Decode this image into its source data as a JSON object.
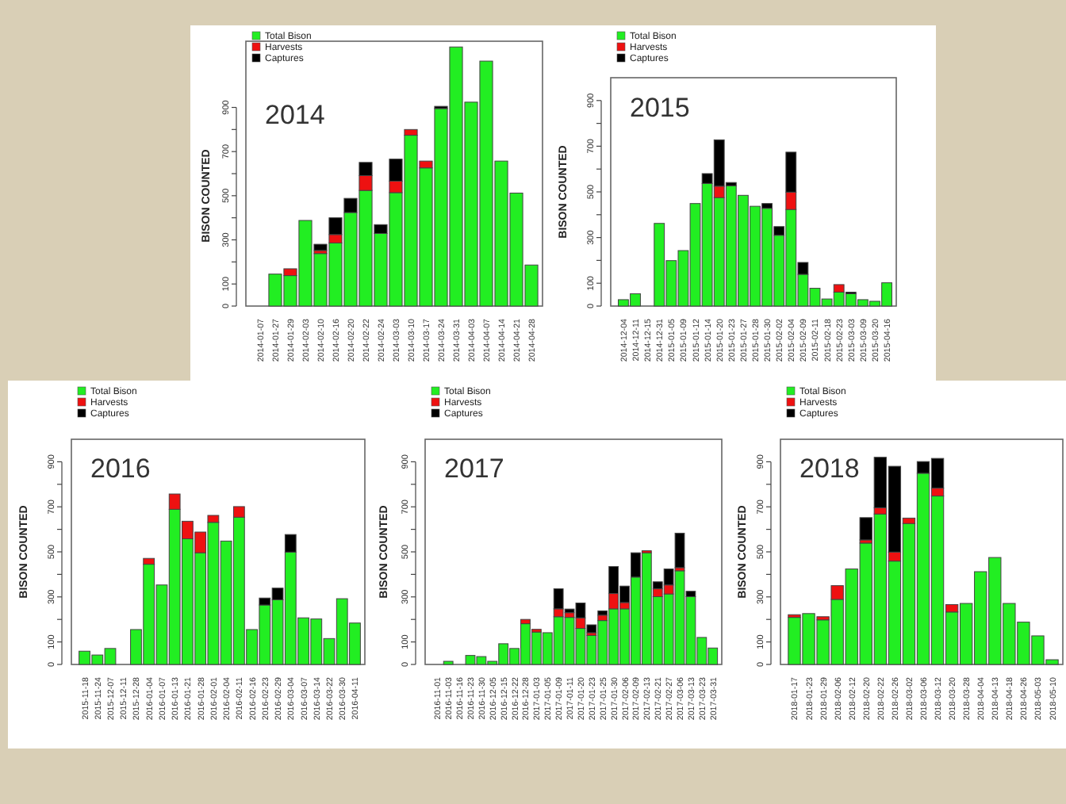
{
  "chart_data": [
    {
      "type": "bar",
      "stacked": true,
      "title": "2014",
      "ylabel": "BISON COUNTED",
      "legend": "top left",
      "categories": [
        "2014-01-07",
        "2014-01-27",
        "2014-01-29",
        "2014-02-03",
        "2014-02-10",
        "2014-02-16",
        "2014-02-20",
        "2014-02-22",
        "2014-02-24",
        "2014-03-03",
        "2014-03-10",
        "2014-03-17",
        "2014-03-24",
        "2014-03-31",
        "2014-04-03",
        "2014-04-07",
        "2014-04-14",
        "2014-04-21",
        "2014-04-28"
      ],
      "series": [
        {
          "name": "Total Bison",
          "color": "#22ee22",
          "values": [
            0,
            145,
            138,
            388,
            238,
            286,
            424,
            524,
            329,
            514,
            774,
            626,
            895,
            1174,
            924,
            1110,
            657,
            512,
            186
          ]
        },
        {
          "name": "Harvests",
          "color": "#ee1111",
          "values": [
            null,
            null,
            31,
            null,
            14,
            38,
            null,
            67,
            null,
            52,
            26,
            31,
            null,
            null,
            null,
            null,
            null,
            null,
            null
          ]
        },
        {
          "name": "Captures",
          "color": "#000000",
          "values": [
            null,
            null,
            null,
            null,
            28,
            76,
            64,
            60,
            40,
            100,
            null,
            null,
            10,
            null,
            null,
            null,
            null,
            null,
            null
          ]
        }
      ],
      "ylim": [
        0,
        1200
      ],
      "yticks": [
        0,
        100,
        {
          "value": 200,
          "label": null
        },
        300,
        {
          "value": 400,
          "label": null
        },
        500,
        {
          "value": 600,
          "label": null
        },
        700,
        {
          "value": 800,
          "label": null
        },
        900
      ]
    },
    {
      "type": "bar",
      "stacked": true,
      "title": "2015",
      "ylabel": "BISON COUNTED",
      "legend": "top left",
      "categories": [
        "2014-12-04",
        "2014-12-11",
        "2014-12-15",
        "2014-12-31",
        "2015-01-05",
        "2015-01-09",
        "2015-01-12",
        "2015-01-14",
        "2015-01-20",
        "2015-01-23",
        "2015-01-27",
        "2015-01-28",
        "2015-01-30",
        "2015-02-02",
        "2015-02-04",
        "2015-02-09",
        "2015-02-11",
        "2015-02-18",
        "2015-02-23",
        "2015-03-03",
        "2015-03-09",
        "2015-03-20",
        "2015-04-16"
      ],
      "series": [
        {
          "name": "Total Bison",
          "color": "#22ee22",
          "values": [
            28,
            54,
            0,
            362,
            199,
            243,
            449,
            537,
            475,
            527,
            485,
            437,
            428,
            310,
            423,
            139,
            78,
            31,
            61,
            54,
            28,
            21,
            102
          ]
        },
        {
          "name": "Harvests",
          "color": "#ee1111",
          "values": [
            null,
            null,
            null,
            null,
            null,
            null,
            null,
            null,
            50,
            null,
            null,
            null,
            null,
            null,
            76,
            null,
            null,
            null,
            33,
            null,
            null,
            null,
            null
          ]
        },
        {
          "name": "Captures",
          "color": "#000000",
          "values": [
            null,
            null,
            null,
            null,
            null,
            null,
            null,
            43,
            203,
            14,
            null,
            null,
            21,
            38,
            175,
            52,
            null,
            null,
            null,
            7,
            null,
            null,
            null
          ]
        }
      ],
      "ylim": [
        0,
        1000
      ],
      "yticks": [
        0,
        100,
        {
          "value": 200,
          "label": null
        },
        300,
        {
          "value": 400,
          "label": null
        },
        500,
        {
          "value": 600,
          "label": null
        },
        700,
        {
          "value": 800,
          "label": null
        },
        900
      ]
    },
    {
      "type": "bar",
      "stacked": true,
      "title": "2016",
      "ylabel": "BISON COUNTED",
      "legend": "top left",
      "categories": [
        "2015-11-18",
        "2015-11-24",
        "2015-12-07",
        "2015-12-11",
        "2015-12-28",
        "2016-01-04",
        "2016-01-07",
        "2016-01-13",
        "2016-01-21",
        "2016-01-28",
        "2016-02-01",
        "2016-02-04",
        "2016-02-11",
        "2016-02-16",
        "2016-02-23",
        "2016-02-29",
        "2016-03-04",
        "2016-03-07",
        "2016-03-14",
        "2016-03-22",
        "2016-03-30",
        "2016-04-11"
      ],
      "series": [
        {
          "name": "Total Bison",
          "color": "#22ee22",
          "values": [
            59,
            42,
            71,
            0,
            155,
            445,
            353,
            689,
            558,
            496,
            631,
            548,
            654,
            155,
            264,
            287,
            499,
            207,
            202,
            115,
            292,
            184
          ]
        },
        {
          "name": "Harvests",
          "color": "#ee1111",
          "values": [
            null,
            null,
            null,
            null,
            null,
            26,
            null,
            68,
            78,
            92,
            31,
            null,
            47,
            null,
            null,
            null,
            null,
            null,
            null,
            null,
            null,
            null
          ]
        },
        {
          "name": "Captures",
          "color": "#000000",
          "values": [
            null,
            null,
            null,
            null,
            null,
            null,
            null,
            null,
            null,
            null,
            null,
            null,
            null,
            null,
            31,
            52,
            78,
            null,
            null,
            null,
            null,
            null
          ]
        }
      ],
      "ylim": [
        0,
        1000
      ],
      "yticks": [
        0,
        100,
        {
          "value": 200,
          "label": null
        },
        300,
        {
          "value": 400,
          "label": null
        },
        500,
        {
          "value": 600,
          "label": null
        },
        700,
        {
          "value": 800,
          "label": null
        },
        900
      ]
    },
    {
      "type": "bar",
      "stacked": true,
      "title": "2017",
      "ylabel": "BISON COUNTED",
      "legend": "top left",
      "categories": [
        "2016-11-01",
        "2016-11-03",
        "2016-11-16",
        "2016-11-23",
        "2016-11-30",
        "2016-12-05",
        "2016-12-15",
        "2016-12-22",
        "2016-12-28",
        "2017-01-03",
        "2017-01-05",
        "2017-01-09",
        "2017-01-11",
        "2017-01-20",
        "2017-01-23",
        "2017-01-25",
        "2017-01-30",
        "2017-02-06",
        "2017-02-09",
        "2017-02-13",
        "2017-02-21",
        "2017-02-27",
        "2017-03-06",
        "2017-03-13",
        "2017-03-23",
        "2017-03-31"
      ],
      "series": [
        {
          "name": "Total Bison",
          "color": "#22ee22",
          "values": [
            0,
            14,
            0,
            40,
            35,
            14,
            92,
            71,
            181,
            144,
            141,
            212,
            209,
            160,
            129,
            195,
            247,
            247,
            388,
            496,
            301,
            313,
            416,
            301,
            120,
            73
          ]
        },
        {
          "name": "Harvests",
          "color": "#ee1111",
          "values": [
            null,
            null,
            null,
            null,
            null,
            null,
            null,
            null,
            19,
            12,
            null,
            35,
            21,
            47,
            12,
            24,
            68,
            28,
            null,
            9,
            35,
            40,
            14,
            null,
            null,
            null
          ]
        },
        {
          "name": "Captures",
          "color": "#000000",
          "values": [
            null,
            null,
            null,
            null,
            null,
            null,
            null,
            null,
            null,
            null,
            null,
            89,
            16,
            66,
            35,
            19,
            120,
            73,
            108,
            null,
            31,
            71,
            153,
            24,
            null,
            null
          ]
        }
      ],
      "ylim": [
        0,
        1000
      ],
      "yticks": [
        0,
        100,
        {
          "value": 200,
          "label": null
        },
        300,
        {
          "value": 400,
          "label": null
        },
        500,
        {
          "value": 600,
          "label": null
        },
        700,
        {
          "value": 800,
          "label": null
        },
        900
      ]
    },
    {
      "type": "bar",
      "stacked": true,
      "title": "2018",
      "ylabel": "BISON COUNTED",
      "legend": "top left",
      "categories": [
        "2018-01-17",
        "2018-01-23",
        "2018-01-29",
        "2018-02-06",
        "2018-02-12",
        "2018-02-20",
        "2018-02-22",
        "2018-02-26",
        "2018-03-02",
        "2018-03-06",
        "2018-03-12",
        "2018-03-20",
        "2018-03-28",
        "2018-04-04",
        "2018-04-13",
        "2018-04-18",
        "2018-04-26",
        "2018-05-03",
        "2018-05-10"
      ],
      "series": [
        {
          "name": "Total Bison",
          "color": "#22ee22",
          "values": [
            209,
            226,
            198,
            289,
            424,
            539,
            668,
            459,
            626,
            849,
            748,
            233,
            271,
            412,
            475,
            271,
            188,
            127,
            21
          ]
        },
        {
          "name": "Harvests",
          "color": "#ee1111",
          "values": [
            12,
            null,
            14,
            61,
            null,
            14,
            28,
            40,
            24,
            null,
            35,
            33,
            null,
            null,
            null,
            null,
            null,
            null,
            null
          ]
        },
        {
          "name": "Captures",
          "color": "#000000",
          "values": [
            null,
            null,
            null,
            null,
            null,
            99,
            224,
            381,
            null,
            52,
            132,
            null,
            null,
            null,
            null,
            null,
            null,
            null,
            null
          ]
        }
      ],
      "ylim": [
        0,
        1000
      ],
      "yticks": [
        0,
        100,
        {
          "value": 200,
          "label": null
        },
        300,
        {
          "value": 400,
          "label": null
        },
        500,
        {
          "value": 600,
          "label": null
        },
        700,
        {
          "value": 800,
          "label": null
        },
        900
      ]
    }
  ]
}
